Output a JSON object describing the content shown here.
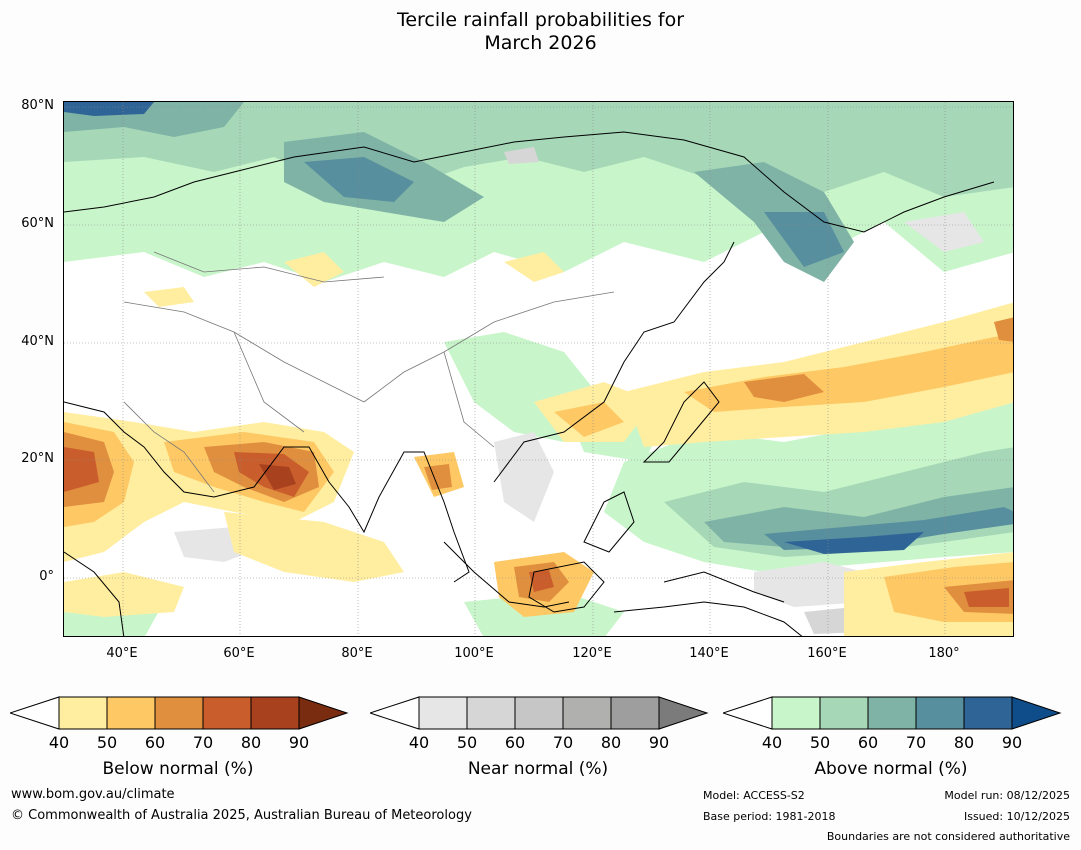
{
  "title_line1": "Tercile rainfall probabilities for",
  "title_line2": "March 2026",
  "map": {
    "lat_labels": [
      "80°N",
      "60°N",
      "40°N",
      "20°N",
      "0°"
    ],
    "lon_labels": [
      "40°E",
      "60°E",
      "80°E",
      "100°E",
      "120°E",
      "140°E",
      "160°E",
      "180°"
    ],
    "extent": {
      "lon_min": 30,
      "lon_max": 192,
      "lat_min": -10,
      "lat_max": 81
    }
  },
  "legends": [
    {
      "title": "Below normal (%)",
      "ticks": [
        "40",
        "50",
        "60",
        "70",
        "80",
        "90"
      ],
      "colors": [
        "#ffeea0",
        "#fec965",
        "#e08f3e",
        "#c95e2c",
        "#a8411e",
        "#7a2c10"
      ]
    },
    {
      "title": "Near normal (%)",
      "ticks": [
        "40",
        "50",
        "60",
        "70",
        "80",
        "90"
      ],
      "colors": [
        "#e6e6e6",
        "#d6d6d6",
        "#c6c6c6",
        "#b0b1ae",
        "#9e9e9e",
        "#7b7b7b"
      ]
    },
    {
      "title": "Above normal (%)",
      "ticks": [
        "40",
        "50",
        "60",
        "70",
        "80",
        "90"
      ],
      "colors": [
        "#c8f5ca",
        "#a6d8b8",
        "#7fb3a6",
        "#578f9e",
        "#2f6496",
        "#0f4c8a"
      ]
    }
  ],
  "footer": {
    "url": "www.bom.gov.au/climate",
    "copyright": "© Commonwealth of Australia 2025, Australian Bureau of Meteorology",
    "model": "Model: ACCESS-S2",
    "base_period": "Base period: 1981-2018",
    "model_run": "Model run: 08/12/2025",
    "issued": "Issued: 10/12/2025",
    "boundaries": "Boundaries are not considered authoritative"
  }
}
